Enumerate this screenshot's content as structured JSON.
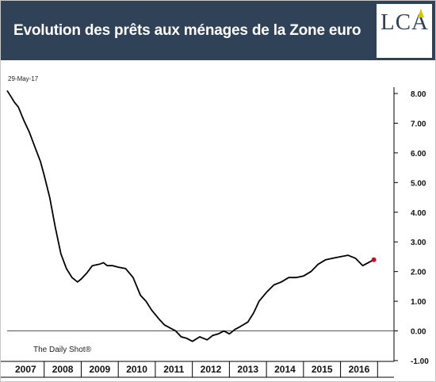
{
  "header": {
    "title": "Evolution des prêts aux ménages de la Zone euro"
  },
  "logo": {
    "text": "LCA",
    "accent_color": "#d9c400"
  },
  "colors": {
    "header_bg": "#2f4257",
    "line": "#000000",
    "last_point": "#e0001b"
  },
  "date_label": "29-May-17",
  "source": "The Daily Shot®",
  "chart_data": {
    "type": "line",
    "ylim": [
      -1.0,
      8.0
    ],
    "y_ticks": [
      "8.00",
      "7.00",
      "6.00",
      "5.00",
      "4.00",
      "3.00",
      "2.00",
      "1.00",
      "0.00",
      "-1.00"
    ],
    "y_tick_values": [
      8,
      7,
      6,
      5,
      4,
      3,
      2,
      1,
      0,
      -1
    ],
    "x_labels": [
      "2007",
      "2008",
      "2009",
      "2010",
      "2011",
      "2012",
      "2013",
      "2014",
      "2015",
      "2016"
    ],
    "xlim": [
      2007.0,
      2017.4
    ],
    "grid": false,
    "zero_line": true,
    "x": [
      2007.0,
      2007.1,
      2007.2,
      2007.3,
      2007.45,
      2007.6,
      2007.75,
      2007.9,
      2008.0,
      2008.15,
      2008.3,
      2008.45,
      2008.6,
      2008.75,
      2008.9,
      2009.0,
      2009.15,
      2009.3,
      2009.5,
      2009.6,
      2009.7,
      2009.85,
      2010.0,
      2010.2,
      2010.4,
      2010.6,
      2010.75,
      2010.9,
      2011.1,
      2011.25,
      2011.4,
      2011.55,
      2011.7,
      2011.85,
      2012.0,
      2012.2,
      2012.4,
      2012.55,
      2012.7,
      2012.85,
      2013.0,
      2013.15,
      2013.3,
      2013.5,
      2013.65,
      2013.8,
      2014.0,
      2014.2,
      2014.4,
      2014.6,
      2014.8,
      2015.0,
      2015.2,
      2015.4,
      2015.6,
      2015.8,
      2016.0,
      2016.2,
      2016.4,
      2016.6,
      2016.75,
      2016.9
    ],
    "y": [
      8.1,
      7.9,
      7.7,
      7.55,
      7.1,
      6.7,
      6.2,
      5.7,
      5.25,
      4.5,
      3.5,
      2.6,
      2.1,
      1.8,
      1.65,
      1.75,
      1.95,
      2.2,
      2.25,
      2.3,
      2.2,
      2.2,
      2.15,
      2.1,
      1.8,
      1.2,
      1.0,
      0.7,
      0.4,
      0.2,
      0.1,
      0.0,
      -0.2,
      -0.25,
      -0.35,
      -0.2,
      -0.3,
      -0.15,
      -0.1,
      0.0,
      -0.1,
      0.05,
      0.15,
      0.3,
      0.6,
      1.0,
      1.3,
      1.55,
      1.65,
      1.8,
      1.8,
      1.85,
      2.0,
      2.25,
      2.4,
      2.45,
      2.5,
      2.55,
      2.45,
      2.2,
      2.3,
      2.4
    ]
  }
}
